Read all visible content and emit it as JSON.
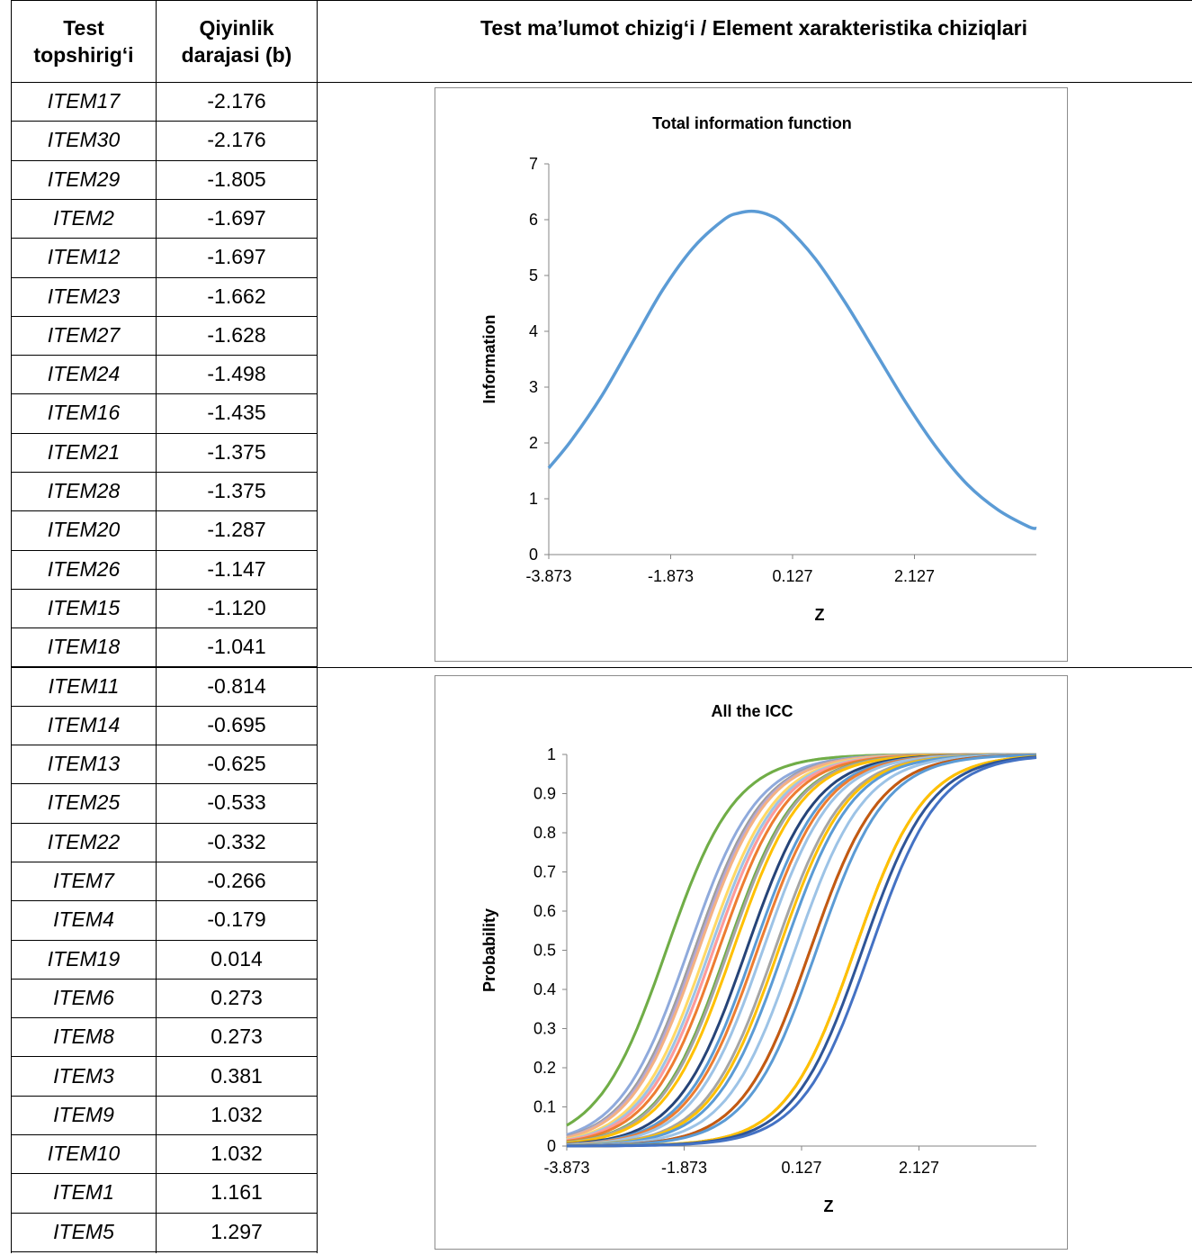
{
  "table": {
    "headers": {
      "col1": [
        "Test",
        "topshirig‘i"
      ],
      "col2": [
        "Qiyinlik",
        "darajasi (b)"
      ],
      "col3": "Test ma’lumot chizig‘i / Element xarakteristika chiziqlari"
    },
    "rows": [
      {
        "item": "ITEM17",
        "b": "-2.176"
      },
      {
        "item": "ITEM30",
        "b": "-2.176"
      },
      {
        "item": "ITEM29",
        "b": "-1.805"
      },
      {
        "item": "ITEM2",
        "b": "-1.697"
      },
      {
        "item": "ITEM12",
        "b": "-1.697"
      },
      {
        "item": "ITEM23",
        "b": "-1.662"
      },
      {
        "item": "ITEM27",
        "b": "-1.628"
      },
      {
        "item": "ITEM24",
        "b": "-1.498"
      },
      {
        "item": "ITEM16",
        "b": "-1.435"
      },
      {
        "item": "ITEM21",
        "b": "-1.375"
      },
      {
        "item": "ITEM28",
        "b": "-1.375"
      },
      {
        "item": "ITEM20",
        "b": "-1.287"
      },
      {
        "item": "ITEM26",
        "b": "-1.147"
      },
      {
        "item": "ITEM15",
        "b": "-1.120"
      },
      {
        "item": "ITEM18",
        "b": "-1.041"
      },
      {
        "item": "ITEM11",
        "b": "-0.814"
      },
      {
        "item": "ITEM14",
        "b": "-0.695"
      },
      {
        "item": "ITEM13",
        "b": "-0.625"
      },
      {
        "item": "ITEM25",
        "b": "-0.533"
      },
      {
        "item": "ITEM22",
        "b": "-0.332"
      },
      {
        "item": "ITEM7",
        "b": "-0.266"
      },
      {
        "item": "ITEM4",
        "b": "-0.179"
      },
      {
        "item": "ITEM19",
        "b": "0.014"
      },
      {
        "item": "ITEM6",
        "b": "0.273"
      },
      {
        "item": "ITEM8",
        "b": "0.273"
      },
      {
        "item": "ITEM3",
        "b": "0.381"
      },
      {
        "item": "ITEM9",
        "b": "1.032"
      },
      {
        "item": "ITEM10",
        "b": "1.032"
      },
      {
        "item": "ITEM1",
        "b": "1.161"
      },
      {
        "item": "ITEM5",
        "b": "1.297"
      }
    ]
  },
  "chart_data": [
    {
      "type": "line",
      "title": "Total information function",
      "xlabel": "Z",
      "ylabel": "Information",
      "xlim": [
        -3.873,
        4.127
      ],
      "ylim": [
        0,
        7
      ],
      "xticks": [
        "-3.873",
        "-1.873",
        "0.127",
        "2.127"
      ],
      "yticks": [
        "0",
        "1",
        "2",
        "3",
        "4",
        "5",
        "6",
        "7"
      ],
      "x": [
        -3.873,
        -3.5,
        -3.0,
        -2.5,
        -2.0,
        -1.5,
        -1.0,
        -0.75,
        -0.5,
        -0.25,
        0.0,
        0.5,
        1.0,
        1.5,
        2.0,
        2.5,
        3.0,
        3.5,
        4.0,
        4.127
      ],
      "y": [
        1.55,
        2.05,
        2.85,
        3.8,
        4.75,
        5.5,
        6.0,
        6.12,
        6.15,
        6.08,
        5.9,
        5.3,
        4.5,
        3.6,
        2.7,
        1.9,
        1.25,
        0.8,
        0.5,
        0.47
      ],
      "series_color": "#5b9bd5",
      "grid": false
    },
    {
      "type": "line",
      "title": "All the ICC",
      "xlabel": "Z",
      "ylabel": "Probability",
      "xlim": [
        -3.873,
        4.127
      ],
      "ylim": [
        0,
        1
      ],
      "xticks": [
        "-3.873",
        "-1.873",
        "0.127",
        "2.127"
      ],
      "yticks": [
        "0",
        "0.1",
        "0.2",
        "0.3",
        "0.4",
        "0.5",
        "0.6",
        "0.7",
        "0.8",
        "0.9",
        "1"
      ],
      "curve_slope": 1.0,
      "difficulties": [
        -2.176,
        -2.176,
        -1.805,
        -1.697,
        -1.697,
        -1.662,
        -1.628,
        -1.498,
        -1.435,
        -1.375,
        -1.375,
        -1.287,
        -1.147,
        -1.12,
        -1.041,
        -0.814,
        -0.695,
        -0.625,
        -0.533,
        -0.332,
        -0.266,
        -0.179,
        0.014,
        0.273,
        0.273,
        0.381,
        1.032,
        1.032,
        1.161,
        1.297
      ],
      "colors": [
        "#a9d18e",
        "#70ad47",
        "#8faadc",
        "#7f7f7f",
        "#9e9e9e",
        "#b4a7d6",
        "#f4b183",
        "#ffd966",
        "#9dc3e6",
        "#c5e0b4",
        "#ff9999",
        "#ed7d31",
        "#70ad47",
        "#a5a5a5",
        "#ffc000",
        "#264478",
        "#5b9bd5",
        "#ed7d31",
        "#9dc3e6",
        "#a5a5a5",
        "#ffc000",
        "#5b9bd5",
        "#9dc3e6",
        "#7f7f7f",
        "#c55a11",
        "#5b9bd5",
        "#bf9000",
        "#ffc000",
        "#2f5597",
        "#4472c4"
      ],
      "grid": false
    }
  ]
}
